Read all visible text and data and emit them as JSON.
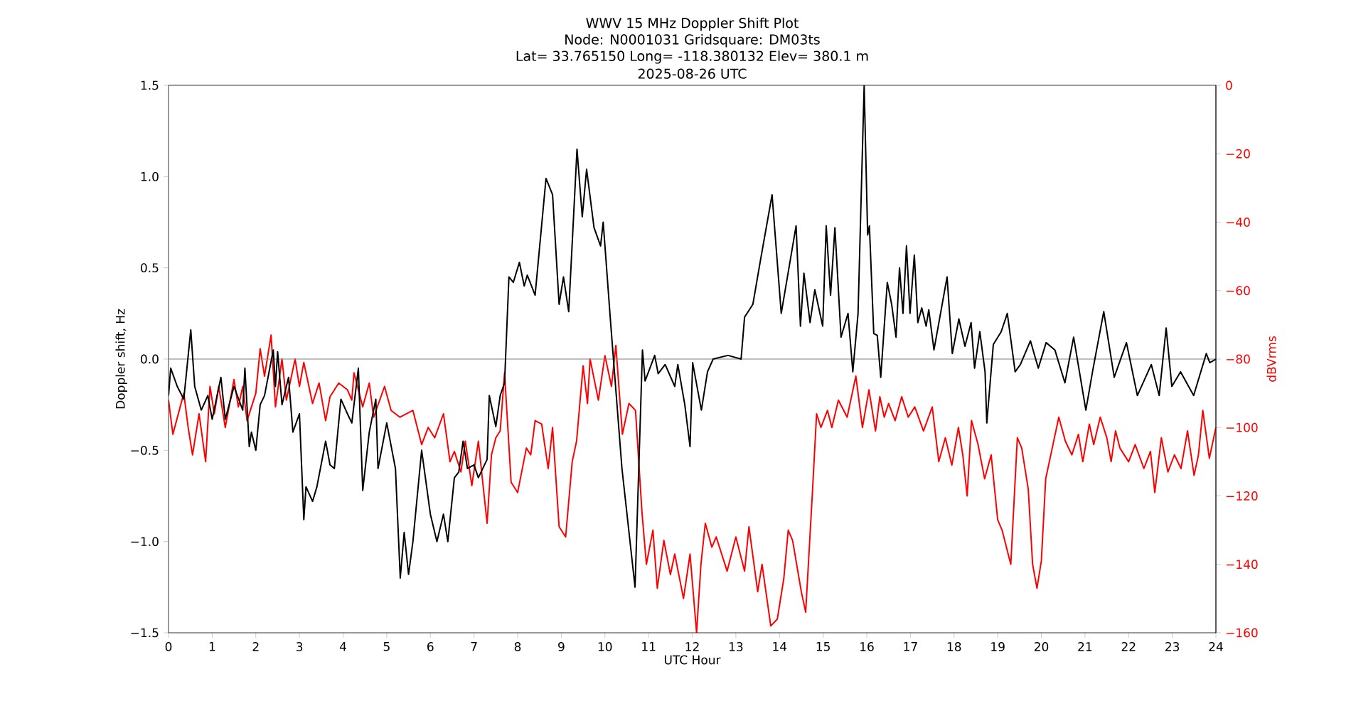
{
  "chart_data": {
    "type": "line",
    "title": "WWV 15 MHz Doppler Shift Plot",
    "subtitle": "Node:  N0001031     Gridsquare:  DM03ts",
    "annotations": [
      "Lat= 33.765150    Long= -118.380132    Elev= 380.1 m",
      "2025-08-26  UTC"
    ],
    "xlabel": "UTC Hour",
    "ylabel": "Doppler shift, Hz",
    "y2label": "dBVrms",
    "xlim": [
      0,
      24
    ],
    "xticks": [
      0,
      1,
      2,
      3,
      4,
      5,
      6,
      7,
      8,
      9,
      10,
      11,
      12,
      13,
      14,
      15,
      16,
      17,
      18,
      19,
      20,
      21,
      22,
      23,
      24
    ],
    "ylim": [
      -1.5,
      1.5
    ],
    "yticks": [
      {
        "value": -1.5,
        "label": "−1.5"
      },
      {
        "value": -1.0,
        "label": "−1.0"
      },
      {
        "value": -0.5,
        "label": "−0.5"
      },
      {
        "value": 0,
        "label": "0.0"
      },
      {
        "value": 0.5,
        "label": "0.5"
      },
      {
        "value": 1.0,
        "label": "1.0"
      },
      {
        "value": 1.5,
        "label": "1.5"
      }
    ],
    "y2lim": [
      -160,
      0
    ],
    "y2ticks": [
      {
        "value": -160,
        "label": "−160"
      },
      {
        "value": -140,
        "label": "−140"
      },
      {
        "value": -120,
        "label": "−120"
      },
      {
        "value": -100,
        "label": "−100"
      },
      {
        "value": -80,
        "label": "−80"
      },
      {
        "value": -60,
        "label": "−60"
      },
      {
        "value": -40,
        "label": "−40"
      },
      {
        "value": -20,
        "label": "−20"
      },
      {
        "value": 0,
        "label": "0"
      }
    ],
    "ref_lines": [
      {
        "axis": "y",
        "value": 0,
        "color": "#808080"
      }
    ],
    "series": [
      {
        "color": "#000000",
        "x": [
          0,
          0.05,
          0.2,
          0.35,
          0.51,
          0.6,
          0.75,
          0.9,
          1.0,
          1.2,
          1.3,
          1.5,
          1.7,
          1.75,
          1.85,
          1.9,
          2.0,
          2.1,
          2.2,
          2.4,
          2.45,
          2.5,
          2.6,
          2.75,
          2.85,
          3.0,
          3.1,
          3.15,
          3.3,
          3.4,
          3.6,
          3.7,
          3.8,
          3.95,
          4.1,
          4.2,
          4.35,
          4.45,
          4.6,
          4.75,
          4.8,
          5.0,
          5.2,
          5.31,
          5.4,
          5.5,
          5.6,
          5.8,
          6.0,
          6.15,
          6.3,
          6.4,
          6.55,
          6.65,
          6.75,
          6.85,
          7.0,
          7.1,
          7.3,
          7.35,
          7.5,
          7.6,
          7.7,
          7.8,
          7.9,
          8.04,
          8.15,
          8.22,
          8.4,
          8.65,
          8.8,
          8.95,
          9.05,
          9.17,
          9.36,
          9.48,
          9.58,
          9.75,
          9.9,
          9.96,
          10.13,
          10.39,
          10.69,
          10.86,
          10.92,
          11.14,
          11.22,
          11.38,
          11.6,
          11.67,
          11.83,
          11.95,
          12.01,
          12.21,
          12.35,
          12.48,
          12.82,
          13.12,
          13.2,
          13.39,
          13.57,
          13.83,
          14.04,
          14.38,
          14.48,
          14.56,
          14.7,
          14.81,
          14.99,
          15.07,
          15.17,
          15.27,
          15.41,
          15.57,
          15.68,
          15.8,
          15.94,
          16.02,
          16.06,
          16.16,
          16.24,
          16.32,
          16.47,
          16.57,
          16.67,
          16.75,
          16.83,
          16.91,
          16.99,
          17.09,
          17.17,
          17.26,
          17.36,
          17.42,
          17.54,
          17.84,
          17.96,
          18.11,
          18.25,
          18.39,
          18.47,
          18.59,
          18.71,
          18.75,
          18.9,
          19.08,
          19.22,
          19.4,
          19.52,
          19.75,
          19.93,
          20.11,
          20.31,
          20.54,
          20.74,
          21.02,
          21.18,
          21.43,
          21.67,
          21.95,
          22.2,
          22.52,
          22.7,
          22.86,
          22.99,
          23.19,
          23.49,
          23.78,
          23.86,
          24
        ],
        "values": [
          -0.2,
          -0.05,
          -0.15,
          -0.22,
          0.16,
          -0.15,
          -0.28,
          -0.2,
          -0.33,
          -0.1,
          -0.33,
          -0.15,
          -0.28,
          -0.05,
          -0.48,
          -0.4,
          -0.5,
          -0.25,
          -0.2,
          0.05,
          -0.15,
          0.04,
          -0.25,
          -0.1,
          -0.4,
          -0.3,
          -0.88,
          -0.7,
          -0.78,
          -0.7,
          -0.45,
          -0.58,
          -0.6,
          -0.22,
          -0.3,
          -0.35,
          -0.05,
          -0.72,
          -0.4,
          -0.22,
          -0.6,
          -0.35,
          -0.6,
          -1.2,
          -0.95,
          -1.18,
          -1.0,
          -0.5,
          -0.85,
          -1.0,
          -0.85,
          -1.0,
          -0.65,
          -0.62,
          -0.45,
          -0.6,
          -0.58,
          -0.65,
          -0.55,
          -0.2,
          -0.37,
          -0.2,
          -0.13,
          0.45,
          0.42,
          0.53,
          0.4,
          0.46,
          0.35,
          0.99,
          0.9,
          0.3,
          0.45,
          0.26,
          1.15,
          0.78,
          1.04,
          0.72,
          0.62,
          0.75,
          0.2,
          -0.6,
          -1.25,
          0.05,
          -0.12,
          0.02,
          -0.08,
          -0.03,
          -0.15,
          -0.03,
          -0.25,
          -0.48,
          -0.02,
          -0.28,
          -0.07,
          0.0,
          0.02,
          0.0,
          0.23,
          0.3,
          0.55,
          0.9,
          0.25,
          0.73,
          0.18,
          0.47,
          0.2,
          0.38,
          0.18,
          0.73,
          0.35,
          0.72,
          0.12,
          0.25,
          -0.07,
          0.25,
          1.5,
          0.68,
          0.73,
          0.14,
          0.13,
          -0.1,
          0.42,
          0.3,
          0.12,
          0.5,
          0.25,
          0.62,
          0.25,
          0.57,
          0.2,
          0.28,
          0.18,
          0.27,
          0.05,
          0.45,
          0.03,
          0.22,
          0.07,
          0.2,
          -0.05,
          0.15,
          -0.07,
          -0.35,
          0.08,
          0.15,
          0.25,
          -0.07,
          -0.03,
          0.1,
          -0.05,
          0.09,
          0.05,
          -0.13,
          0.12,
          -0.28,
          -0.06,
          0.26,
          -0.1,
          0.09,
          -0.2,
          -0.03,
          -0.2,
          0.17,
          -0.15,
          -0.07,
          -0.2,
          0.03,
          -0.02,
          0.0
        ]
      },
      {
        "color": "#ff0000",
        "axis": "y2",
        "x": [
          0,
          0.1,
          0.35,
          0.45,
          0.55,
          0.7,
          0.85,
          0.95,
          1.05,
          1.15,
          1.3,
          1.5,
          1.6,
          1.7,
          1.8,
          2.0,
          2.1,
          2.2,
          2.35,
          2.45,
          2.6,
          2.7,
          2.9,
          3.0,
          3.1,
          3.3,
          3.45,
          3.6,
          3.7,
          3.9,
          4.1,
          4.2,
          4.25,
          4.45,
          4.6,
          4.7,
          4.95,
          5.1,
          5.3,
          5.6,
          5.8,
          5.95,
          6.1,
          6.3,
          6.45,
          6.55,
          6.7,
          6.8,
          6.95,
          7.1,
          7.3,
          7.4,
          7.5,
          7.6,
          7.7,
          7.85,
          8.0,
          8.2,
          8.3,
          8.4,
          8.55,
          8.7,
          8.8,
          8.95,
          9.1,
          9.25,
          9.35,
          9.5,
          9.6,
          9.66,
          9.85,
          10.0,
          10.15,
          10.25,
          10.4,
          10.55,
          10.7,
          10.85,
          10.95,
          11.1,
          11.2,
          11.35,
          11.5,
          11.6,
          11.8,
          11.95,
          12.1,
          12.2,
          12.3,
          12.45,
          12.55,
          12.8,
          13.0,
          13.2,
          13.3,
          13.5,
          13.6,
          13.8,
          13.95,
          14.1,
          14.2,
          14.3,
          14.5,
          14.6,
          14.75,
          14.85,
          14.95,
          15.1,
          15.2,
          15.35,
          15.55,
          15.75,
          15.9,
          16.05,
          16.2,
          16.3,
          16.4,
          16.5,
          16.65,
          16.8,
          16.95,
          17.1,
          17.3,
          17.5,
          17.65,
          17.8,
          17.95,
          18.1,
          18.2,
          18.3,
          18.4,
          18.55,
          18.7,
          18.85,
          19.0,
          19.1,
          19.2,
          19.3,
          19.45,
          19.55,
          19.7,
          19.8,
          19.9,
          20.0,
          20.1,
          20.25,
          20.4,
          20.55,
          20.7,
          20.85,
          20.95,
          21.1,
          21.2,
          21.35,
          21.5,
          21.6,
          21.7,
          21.8,
          22.0,
          22.15,
          22.35,
          22.5,
          22.6,
          22.75,
          22.9,
          23.05,
          23.2,
          23.35,
          23.5,
          23.6,
          23.7,
          23.85,
          24
        ],
        "values": [
          -92,
          -102,
          -90,
          -100,
          -108,
          -96,
          -110,
          -88,
          -96,
          -88,
          -100,
          -86,
          -94,
          -88,
          -98,
          -90,
          -77,
          -85,
          -73,
          -94,
          -80,
          -92,
          -80,
          -88,
          -81,
          -93,
          -87,
          -98,
          -91,
          -87,
          -89,
          -92,
          -84,
          -94,
          -87,
          -97,
          -88,
          -95,
          -97,
          -95,
          -105,
          -100,
          -103,
          -96,
          -110,
          -107,
          -113,
          -104,
          -117,
          -104,
          -128,
          -108,
          -103,
          -101,
          -84,
          -116,
          -119,
          -106,
          -108,
          -98,
          -99,
          -112,
          -100,
          -129,
          -132,
          -110,
          -104,
          -82,
          -93,
          -80,
          -92,
          -79,
          -88,
          -76,
          -102,
          -93,
          -95,
          -125,
          -140,
          -130,
          -147,
          -133,
          -143,
          -137,
          -150,
          -137,
          -160,
          -140,
          -128,
          -135,
          -132,
          -142,
          -132,
          -142,
          -129,
          -148,
          -140,
          -158,
          -156,
          -144,
          -130,
          -133,
          -148,
          -154,
          -120,
          -96,
          -100,
          -95,
          -100,
          -92,
          -97,
          -85,
          -100,
          -89,
          -101,
          -91,
          -97,
          -93,
          -98,
          -91,
          -97,
          -94,
          -101,
          -94,
          -110,
          -103,
          -111,
          -100,
          -108,
          -120,
          -98,
          -105,
          -115,
          -108,
          -127,
          -130,
          -135,
          -140,
          -103,
          -106,
          -118,
          -140,
          -147,
          -139,
          -115,
          -106,
          -97,
          -104,
          -108,
          -102,
          -110,
          -99,
          -105,
          -97,
          -103,
          -110,
          -101,
          -106,
          -110,
          -105,
          -112,
          -107,
          -119,
          -103,
          -113,
          -108,
          -112,
          -101,
          -114,
          -108,
          -95,
          -109,
          -100
        ]
      }
    ]
  }
}
